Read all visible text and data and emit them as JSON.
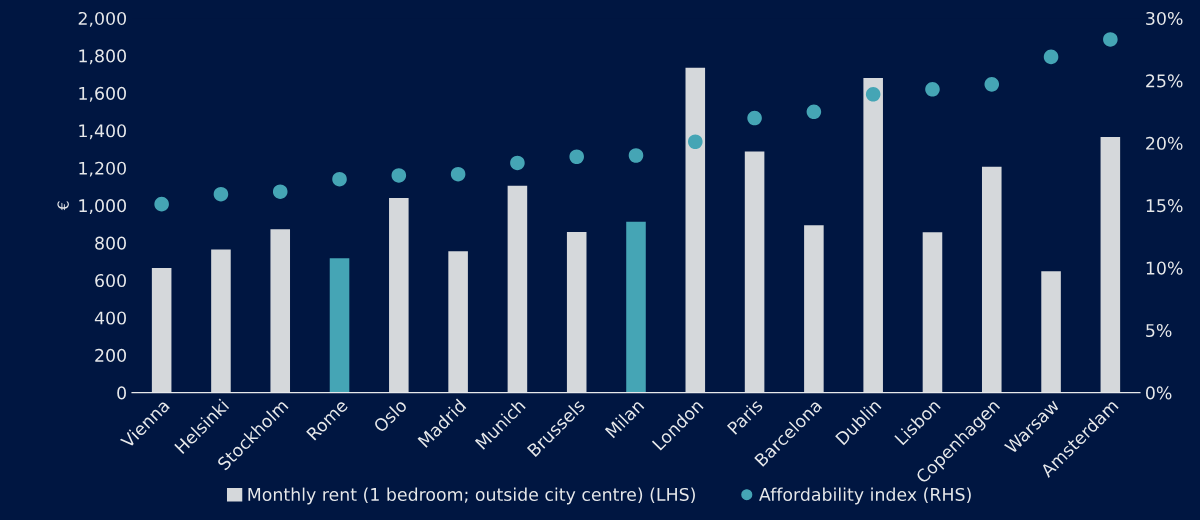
{
  "chart_data": {
    "type": "bar",
    "ylabel": "€",
    "categories": [
      "Vienna",
      "Helsinki",
      "Stockholm",
      "Rome",
      "Oslo",
      "Madrid",
      "Munich",
      "Brussels",
      "Milan",
      "London",
      "Paris",
      "Barcelona",
      "Dublin",
      "Lisbon",
      "Copenhagen",
      "Warsaw",
      "Amsterdam"
    ],
    "series": [
      {
        "name": "Monthly rent (1 bedroom; outside city centre) (LHS)",
        "color": "#d5d8db",
        "colors": [
          "#d5d8db",
          "#d5d8db",
          "#d5d8db",
          "#45a5b5",
          "#d5d8db",
          "#d5d8db",
          "#d5d8db",
          "#d5d8db",
          "#45a5b5",
          "#d5d8db",
          "#d5d8db",
          "#d5d8db",
          "#d5d8db",
          "#d5d8db",
          "#d5d8db",
          "#d5d8db",
          "#d5d8db"
        ],
        "values": [
          665,
          765,
          872,
          718,
          1040,
          755,
          1105,
          858,
          912,
          1735,
          1288,
          894,
          1680,
          856,
          1207,
          648,
          1366
        ]
      },
      {
        "name": "Affordability index (RHS)",
        "type": "scatter",
        "axis": "y2",
        "color": "#45a5b5",
        "marker": "circle",
        "values": [
          15.1,
          15.9,
          16.1,
          17.1,
          17.4,
          17.5,
          18.4,
          18.9,
          19.0,
          20.1,
          22.0,
          22.5,
          23.9,
          24.3,
          24.7,
          26.9,
          28.3
        ]
      }
    ],
    "ylim": [
      0,
      2000
    ],
    "yticks": [
      0,
      {
        "value": 200,
        "label": "200"
      },
      {
        "value": 400,
        "label": "400"
      },
      {
        "value": 600,
        "label": "600"
      },
      {
        "value": 800,
        "label": "800"
      },
      {
        "value": 1000,
        "label": "1,000"
      },
      {
        "value": 1200,
        "label": "1,200"
      },
      {
        "value": 1400,
        "label": "1,400"
      },
      {
        "value": 1600,
        "label": "1,600"
      },
      {
        "value": 1800,
        "label": "1,800"
      },
      {
        "value": 2000,
        "label": "2,000"
      }
    ],
    "y2lim": [
      0,
      30
    ],
    "y2ticks": [
      {
        "value": 0,
        "label": "0%"
      },
      {
        "value": 5,
        "label": "5%"
      },
      {
        "value": 10,
        "label": "10%"
      },
      {
        "value": 15,
        "label": "15%"
      },
      {
        "value": 20,
        "label": "20%"
      },
      {
        "value": 25,
        "label": "25%"
      },
      {
        "value": 30,
        "label": "30%"
      }
    ],
    "grid": false,
    "legend": "bottom"
  }
}
